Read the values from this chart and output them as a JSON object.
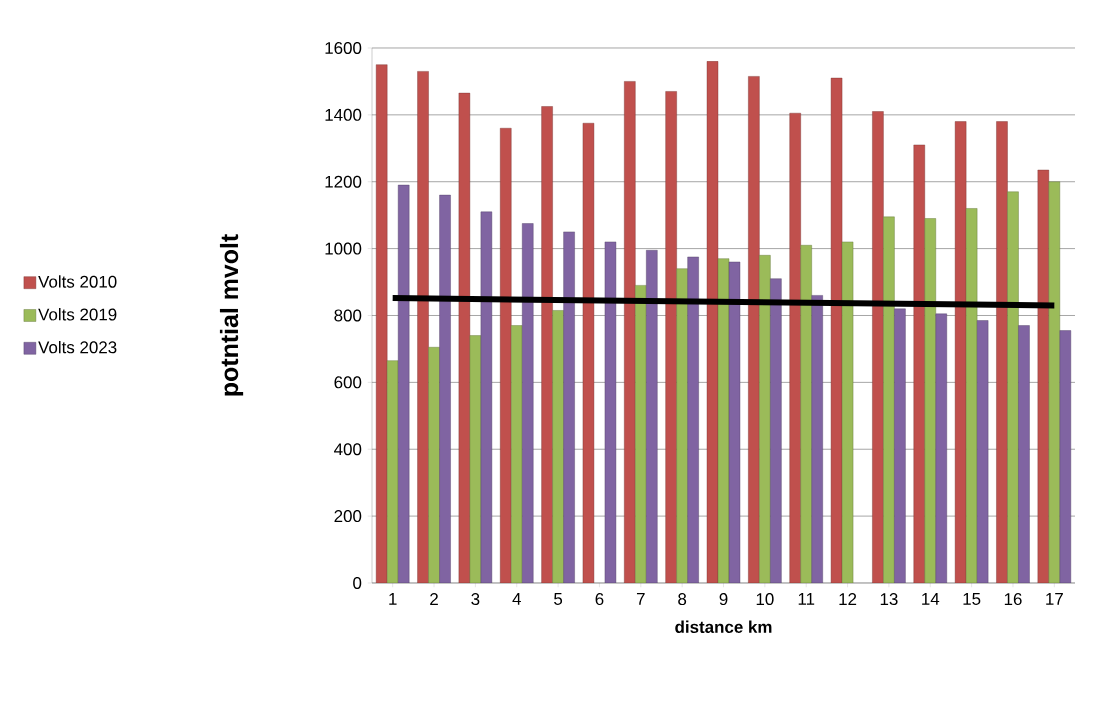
{
  "chart_data": {
    "type": "bar",
    "xlabel": "distance km",
    "ylabel": "potntial mvolt",
    "x": [
      1,
      2,
      3,
      4,
      5,
      6,
      7,
      8,
      9,
      10,
      11,
      12,
      13,
      14,
      15,
      16,
      17
    ],
    "xlim": [
      0.5,
      17.5
    ],
    "xticks": [
      1,
      2,
      3,
      4,
      5,
      6,
      7,
      8,
      9,
      10,
      11,
      12,
      13,
      14,
      15,
      16,
      17
    ],
    "ylim": [
      0,
      1600
    ],
    "yticks": [
      0,
      200,
      400,
      600,
      800,
      1000,
      1200,
      1400,
      1600
    ],
    "grid": "y",
    "legend": "left",
    "series": [
      {
        "name": "Volts 2010",
        "color": "#c0504d",
        "values": [
          1550,
          1530,
          1465,
          1360,
          1425,
          1375,
          1500,
          1470,
          1560,
          1515,
          1405,
          1510,
          1410,
          1310,
          1380,
          1380,
          1235
        ]
      },
      {
        "name": "Volts 2019",
        "color": "#9bbb59",
        "values": [
          665,
          705,
          740,
          770,
          815,
          null,
          890,
          940,
          970,
          980,
          1010,
          1020,
          1095,
          1090,
          1120,
          1170,
          1200
        ]
      },
      {
        "name": "Volts 2023",
        "color": "#8064a2",
        "values": [
          1190,
          1160,
          1110,
          1075,
          1050,
          1020,
          995,
          975,
          960,
          910,
          860,
          null,
          820,
          805,
          785,
          770,
          755
        ]
      },
      {
        "type": "line",
        "color": "#000000",
        "x": [
          1,
          17
        ],
        "values": [
          852,
          830
        ]
      }
    ]
  }
}
